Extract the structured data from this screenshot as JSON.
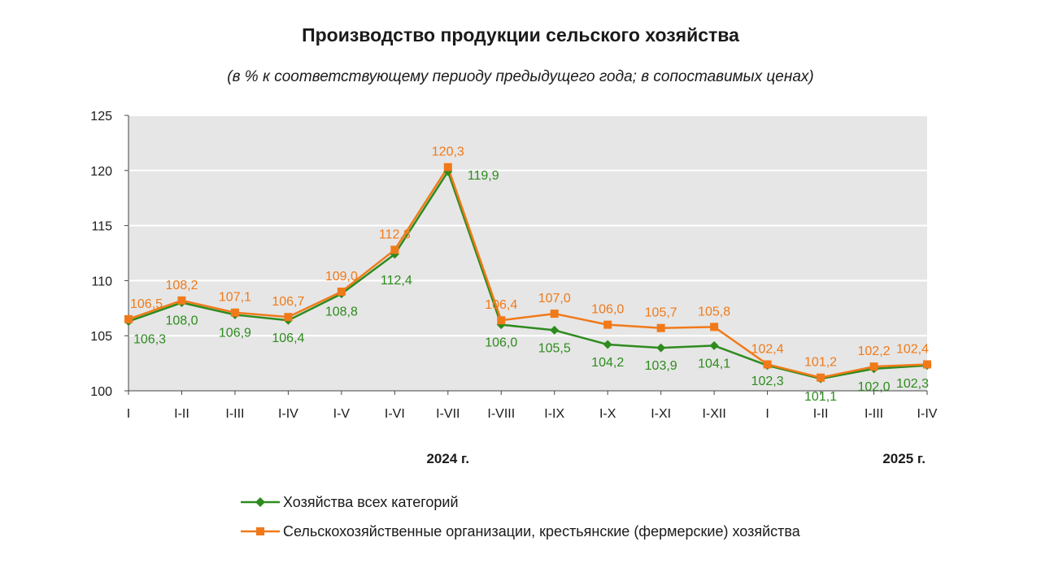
{
  "chart_data": {
    "type": "line",
    "title": "Производство продукции сельского хозяйства",
    "subtitle": "(в % к соответствующему периоду предыдущего года; в сопоставимых ценах)",
    "categories": [
      "I",
      "I-II",
      "I-III",
      "I-IV",
      "I-V",
      "I-VI",
      "I-VII",
      "I-VIII",
      "I-IX",
      "I-X",
      "I-XI",
      "I-XII",
      "I",
      "I-II",
      "I-III",
      "I-IV"
    ],
    "year_labels": [
      {
        "text": "2024 г.",
        "category_index": 6
      },
      {
        "text": "2025 г.",
        "category_index": 15
      }
    ],
    "ylim": [
      100,
      125
    ],
    "yticks": [
      100,
      105,
      110,
      115,
      120,
      125
    ],
    "grid": true,
    "legend_position": "bottom",
    "series": [
      {
        "name": "Хозяйства всех категорий",
        "color": "#2e8b1e",
        "marker": "diamond",
        "label_position": "below",
        "values": [
          106.3,
          108.0,
          106.9,
          106.4,
          108.8,
          112.4,
          119.9,
          106.0,
          105.5,
          104.2,
          103.9,
          104.1,
          102.3,
          101.1,
          102.0,
          102.3
        ],
        "labels": [
          "106,3",
          "108,0",
          "106,9",
          "106,4",
          "108,8",
          "112,4",
          "119,9",
          "106,0",
          "105,5",
          "104,2",
          "103,9",
          "104,1",
          "102,3",
          "101,1",
          "102,0",
          "102,3"
        ]
      },
      {
        "name": "Сельскохозяйственные организации, крестьянские (фермерские) хозяйства",
        "color": "#f07a1a",
        "marker": "square",
        "label_position": "above",
        "values": [
          106.5,
          108.2,
          107.1,
          106.7,
          109.0,
          112.8,
          120.3,
          106.4,
          107.0,
          106.0,
          105.7,
          105.8,
          102.4,
          101.2,
          102.2,
          102.4
        ],
        "labels": [
          "106,5",
          "108,2",
          "107,1",
          "106,7",
          "109,0",
          "112,8",
          "120,3",
          "106,4",
          "107,0",
          "106,0",
          "105,7",
          "105,8",
          "102,4",
          "101,2",
          "102,2",
          "102,4"
        ]
      }
    ],
    "colors": {
      "plot_background": "#e6e6e6",
      "grid": "#ffffff"
    }
  }
}
